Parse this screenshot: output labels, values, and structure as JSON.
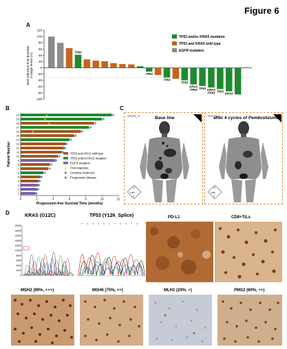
{
  "figure_title": "Figure 6",
  "panels": {
    "a": "A",
    "b": "B",
    "c": "C",
    "d": "D"
  },
  "colors": {
    "orange": "#c8641a",
    "green": "#1f8a2e",
    "gray": "#8c8c8c",
    "purple": "#7a5fa8",
    "blue": "#3a8fd8",
    "star": "#e8c21a",
    "brown": "#a5561f"
  },
  "panel_a": {
    "ylabel": "Best reduction from baseline\nof target lesion (%)",
    "ylim": [
      -100,
      120
    ],
    "yticks": [
      "120",
      "100",
      "80",
      "60",
      "40",
      "20",
      "0",
      "-20",
      "-40",
      "-60",
      "-80",
      "-100"
    ],
    "legend": [
      {
        "label": "TP53 and/or KRAS mutation",
        "color": "green"
      },
      {
        "label": "TP53 and KRAS wild type",
        "color": "orange"
      },
      {
        "label": "EGFR mutation",
        "color": "gray"
      }
    ],
    "bar_labels": [
      "TP53",
      "TP53",
      "TP53",
      "TP53",
      "KRAS\n/TP53",
      "TP53",
      "KRAS\n/TP53",
      "TP53",
      "KRAS"
    ]
  },
  "panel_b": {
    "ylabel": "Patient Number",
    "xlabel": "Progression-free Survival Time (months)",
    "xticks": [
      "0",
      "2",
      "4",
      "6",
      "8",
      "10",
      "12"
    ],
    "yticks": [
      "1",
      "2",
      "3",
      "4",
      "5",
      "6",
      "7",
      "8",
      "9",
      "10",
      "11",
      "12",
      "13",
      "14",
      "15",
      "16",
      "17",
      "18",
      "19",
      "20"
    ],
    "legend": [
      {
        "label": "TP53 and KRAS wild type",
        "kind": "orange"
      },
      {
        "label": "TP53 and/or KRAS mutation",
        "kind": "green"
      },
      {
        "label": "EGFR mutation",
        "kind": "purple"
      },
      {
        "label": "First response",
        "kind": "star"
      },
      {
        "label": "Continue treatment",
        "kind": "arrow"
      },
      {
        "label": "Progression disease",
        "kind": "dot"
      }
    ]
  },
  "panel_c": {
    "left_title": "Base line",
    "right_title": "after 4 cycles of Pembrolizumab",
    "left_tag": "S01ab_5",
    "right_tag": "S01ab_6",
    "orientation": [
      "H",
      "F",
      "Left"
    ]
  },
  "panel_d": {
    "kras_title": "KRAS (G12C)",
    "tp53_title": "TP53 (Y126_Splice)",
    "ihc": [
      "PD-L1",
      "CD8+TILs",
      "MSH2 (90%, +++)",
      "MSH6 (75%, ++)",
      "MLH1 (20%, +)",
      "PMS2 (60%, ++)"
    ],
    "kras_yticks": [
      "20000",
      "18000",
      "16000",
      "14000",
      "12000",
      "10000",
      "8000",
      "6000",
      "4000",
      "2000",
      "0"
    ]
  },
  "chart_data": [
    {
      "type": "bar",
      "title": "",
      "ylabel": "Best reduction from baseline of target lesion (%)",
      "ylim": [
        -100,
        120
      ],
      "series": [
        {
          "values": [
            100,
            80,
            63,
            42,
            27,
            23,
            21,
            15,
            12,
            11,
            5,
            -12,
            -23,
            -31,
            -35,
            -40,
            -53,
            -58,
            -63,
            -68,
            -75,
            -85
          ],
          "colors": [
            "gray",
            "gray",
            "orange",
            "green",
            "orange",
            "orange",
            "orange",
            "orange",
            "orange",
            "orange",
            "green",
            "green",
            "orange",
            "green",
            "orange",
            "green",
            "green",
            "green",
            "green",
            "green",
            "green",
            "green"
          ]
        }
      ]
    },
    {
      "type": "bar",
      "title": "",
      "xlabel": "Progression-free Survival Time (months)",
      "ylabel": "Patient Number",
      "xlim": [
        0,
        12
      ],
      "categories": [
        "1",
        "2",
        "3",
        "4",
        "5",
        "6",
        "7",
        "8",
        "9",
        "10",
        "11",
        "12",
        "13",
        "14",
        "15",
        "16",
        "17",
        "18",
        "19",
        "20"
      ],
      "values": [
        1.8,
        2.0,
        2.1,
        2.2,
        2.4,
        2.8,
        3.4,
        3.6,
        4.2,
        4.6,
        5.0,
        5.3,
        5.5,
        6.0,
        6.6,
        7.4,
        8.4,
        9.0,
        10.0,
        11.2
      ],
      "group": [
        "purple",
        "purple",
        "purple",
        "orange",
        "orange",
        "green",
        "orange",
        "orange",
        "purple",
        "orange",
        "orange",
        "orange",
        "orange",
        "green",
        "orange",
        "orange",
        "green",
        "orange",
        "green",
        "green"
      ],
      "first_response": [
        null,
        null,
        null,
        null,
        null,
        null,
        null,
        null,
        null,
        null,
        null,
        null,
        null,
        null,
        null,
        1.5,
        null,
        3.5,
        3.0,
        3.2
      ],
      "continue": [
        false,
        false,
        false,
        false,
        false,
        true,
        true,
        true,
        false,
        true,
        false,
        false,
        false,
        true,
        true,
        true,
        true,
        true,
        true,
        true
      ],
      "progression": [
        true,
        true,
        true,
        true,
        true,
        false,
        false,
        false,
        true,
        false,
        true,
        true,
        true,
        false,
        false,
        false,
        false,
        false,
        false,
        false
      ]
    }
  ]
}
